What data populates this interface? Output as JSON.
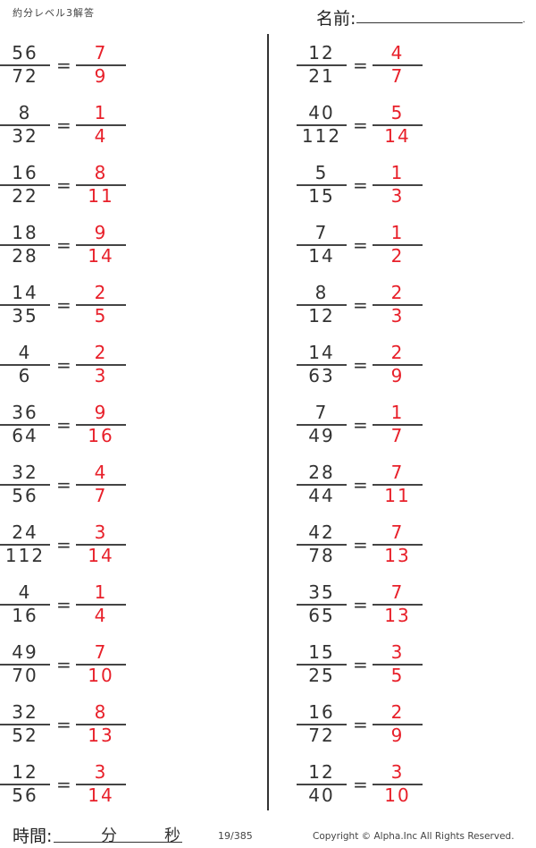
{
  "header": {
    "title": "約分レベル3解答",
    "name_label": "名前:",
    "name_dot": "."
  },
  "colors": {
    "answer": "#e8202a",
    "text": "#333333"
  },
  "equals": "=",
  "left_column": [
    {
      "num": "56",
      "den": "72",
      "ans_num": "7",
      "ans_den": "9"
    },
    {
      "num": "8",
      "den": "32",
      "ans_num": "1",
      "ans_den": "4"
    },
    {
      "num": "16",
      "den": "22",
      "ans_num": "8",
      "ans_den": "11"
    },
    {
      "num": "18",
      "den": "28",
      "ans_num": "9",
      "ans_den": "14"
    },
    {
      "num": "14",
      "den": "35",
      "ans_num": "2",
      "ans_den": "5"
    },
    {
      "num": "4",
      "den": "6",
      "ans_num": "2",
      "ans_den": "3"
    },
    {
      "num": "36",
      "den": "64",
      "ans_num": "9",
      "ans_den": "16"
    },
    {
      "num": "32",
      "den": "56",
      "ans_num": "4",
      "ans_den": "7"
    },
    {
      "num": "24",
      "den": "112",
      "ans_num": "3",
      "ans_den": "14"
    },
    {
      "num": "4",
      "den": "16",
      "ans_num": "1",
      "ans_den": "4"
    },
    {
      "num": "49",
      "den": "70",
      "ans_num": "7",
      "ans_den": "10"
    },
    {
      "num": "32",
      "den": "52",
      "ans_num": "8",
      "ans_den": "13"
    },
    {
      "num": "12",
      "den": "56",
      "ans_num": "3",
      "ans_den": "14"
    }
  ],
  "right_column": [
    {
      "num": "12",
      "den": "21",
      "ans_num": "4",
      "ans_den": "7"
    },
    {
      "num": "40",
      "den": "112",
      "ans_num": "5",
      "ans_den": "14"
    },
    {
      "num": "5",
      "den": "15",
      "ans_num": "1",
      "ans_den": "3"
    },
    {
      "num": "7",
      "den": "14",
      "ans_num": "1",
      "ans_den": "2"
    },
    {
      "num": "8",
      "den": "12",
      "ans_num": "2",
      "ans_den": "3"
    },
    {
      "num": "14",
      "den": "63",
      "ans_num": "2",
      "ans_den": "9"
    },
    {
      "num": "7",
      "den": "49",
      "ans_num": "1",
      "ans_den": "7"
    },
    {
      "num": "28",
      "den": "44",
      "ans_num": "7",
      "ans_den": "11"
    },
    {
      "num": "42",
      "den": "78",
      "ans_num": "7",
      "ans_den": "13"
    },
    {
      "num": "35",
      "den": "65",
      "ans_num": "7",
      "ans_den": "13"
    },
    {
      "num": "15",
      "den": "25",
      "ans_num": "3",
      "ans_den": "5"
    },
    {
      "num": "16",
      "den": "72",
      "ans_num": "2",
      "ans_den": "9"
    },
    {
      "num": "12",
      "den": "40",
      "ans_num": "3",
      "ans_den": "10"
    }
  ],
  "footer": {
    "time_label": "時間:",
    "minutes": "分",
    "seconds": "秒",
    "page": "19/385",
    "copyright": "Copyright ©  Alpha.Inc All Rights Reserved."
  }
}
